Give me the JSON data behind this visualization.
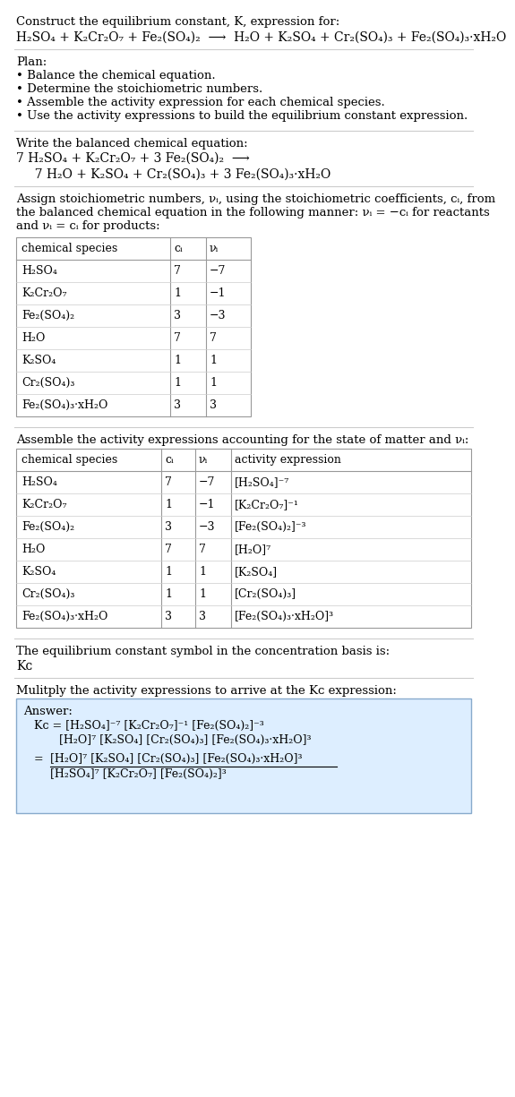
{
  "bg_color": "#ffffff",
  "sections": {
    "s1_title": "Construct the equilibrium constant, K, expression for:",
    "s1_reaction": "H₂SO₄ + K₂Cr₂O₇ + Fe₂(SO₄)₂  ⟶  H₂O + K₂SO₄ + Cr₂(SO₄)₃ + Fe₂(SO₄)₃·xH₂O",
    "s2_plan_header": "Plan:",
    "s2_bullets": [
      "• Balance the chemical equation.",
      "• Determine the stoichiometric numbers.",
      "• Assemble the activity expression for each chemical species.",
      "• Use the activity expressions to build the equilibrium constant expression."
    ],
    "s3_header": "Write the balanced chemical equation:",
    "s3_line1": "7 H₂SO₄ + K₂Cr₂O₇ + 3 Fe₂(SO₄)₂  ⟶",
    "s3_line2": "  7 H₂O + K₂SO₄ + Cr₂(SO₄)₃ + 3 Fe₂(SO₄)₃·xH₂O",
    "s4_header": "Assign stoichiometric numbers, νᵢ, using the stoichiometric coefficients, cᵢ, from\nthe balanced chemical equation in the following manner: νᵢ = −cᵢ for reactants\nand νᵢ = cᵢ for products:",
    "table1_header": [
      "chemical species",
      "cᵢ",
      "νᵢ"
    ],
    "table1_rows": [
      [
        "H₂SO₄",
        "7",
        "−7"
      ],
      [
        "K₂Cr₂O₇",
        "1",
        "−1"
      ],
      [
        "Fe₂(SO₄)₂",
        "3",
        "−3"
      ],
      [
        "H₂O",
        "7",
        "7"
      ],
      [
        "K₂SO₄",
        "1",
        "1"
      ],
      [
        "Cr₂(SO₄)₃",
        "1",
        "1"
      ],
      [
        "Fe₂(SO₄)₃·xH₂O",
        "3",
        "3"
      ]
    ],
    "s5_header": "Assemble the activity expressions accounting for the state of matter and νᵢ:",
    "table2_header": [
      "chemical species",
      "cᵢ",
      "νᵢ",
      "activity expression"
    ],
    "table2_rows": [
      [
        "H₂SO₄",
        "7",
        "−7",
        "[H₂SO₄]⁻⁷"
      ],
      [
        "K₂Cr₂O₇",
        "1",
        "−1",
        "[K₂Cr₂O₇]⁻¹"
      ],
      [
        "Fe₂(SO₄)₂",
        "3",
        "−3",
        "[Fe₂(SO₄)₂]⁻³"
      ],
      [
        "H₂O",
        "7",
        "7",
        "[H₂O]⁷"
      ],
      [
        "K₂SO₄",
        "1",
        "1",
        "[K₂SO₄]"
      ],
      [
        "Cr₂(SO₄)₃",
        "1",
        "1",
        "[Cr₂(SO₄)₃]"
      ],
      [
        "Fe₂(SO₄)₃·xH₂O",
        "3",
        "3",
        "[Fe₂(SO₄)₃·xH₂O]³"
      ]
    ],
    "s6_text": "The equilibrium constant symbol in the concentration basis is:",
    "s6_symbol": "Kᴄ",
    "s7_text": "Mulitply the activity expressions to arrive at the Kᴄ expression:",
    "answer_label": "Answer:",
    "answer_line1": "Kᴄ = [H₂SO₄]⁻⁷ [K₂Cr₂O₇]⁻¹ [Fe₂(SO₄)₂]⁻³",
    "answer_line2": "       [H₂O]⁷ [K₂SO₄] [Cr₂(SO₄)₃] [Fe₂(SO₄)₃·xH₂O]³",
    "answer_eq": "     = ",
    "answer_num": "[H₂O]⁷ [K₂SO₄] [Cr₂(SO₄)₃] [Fe₂(SO₄)₃·xH₂O]³",
    "answer_den": "[H₂SO₄]⁷ [K₂Cr₂O₇] [Fe₂(SO₄)₂]³",
    "answer_box_bg": "#ddeeff",
    "answer_box_border": "#88aacc"
  }
}
